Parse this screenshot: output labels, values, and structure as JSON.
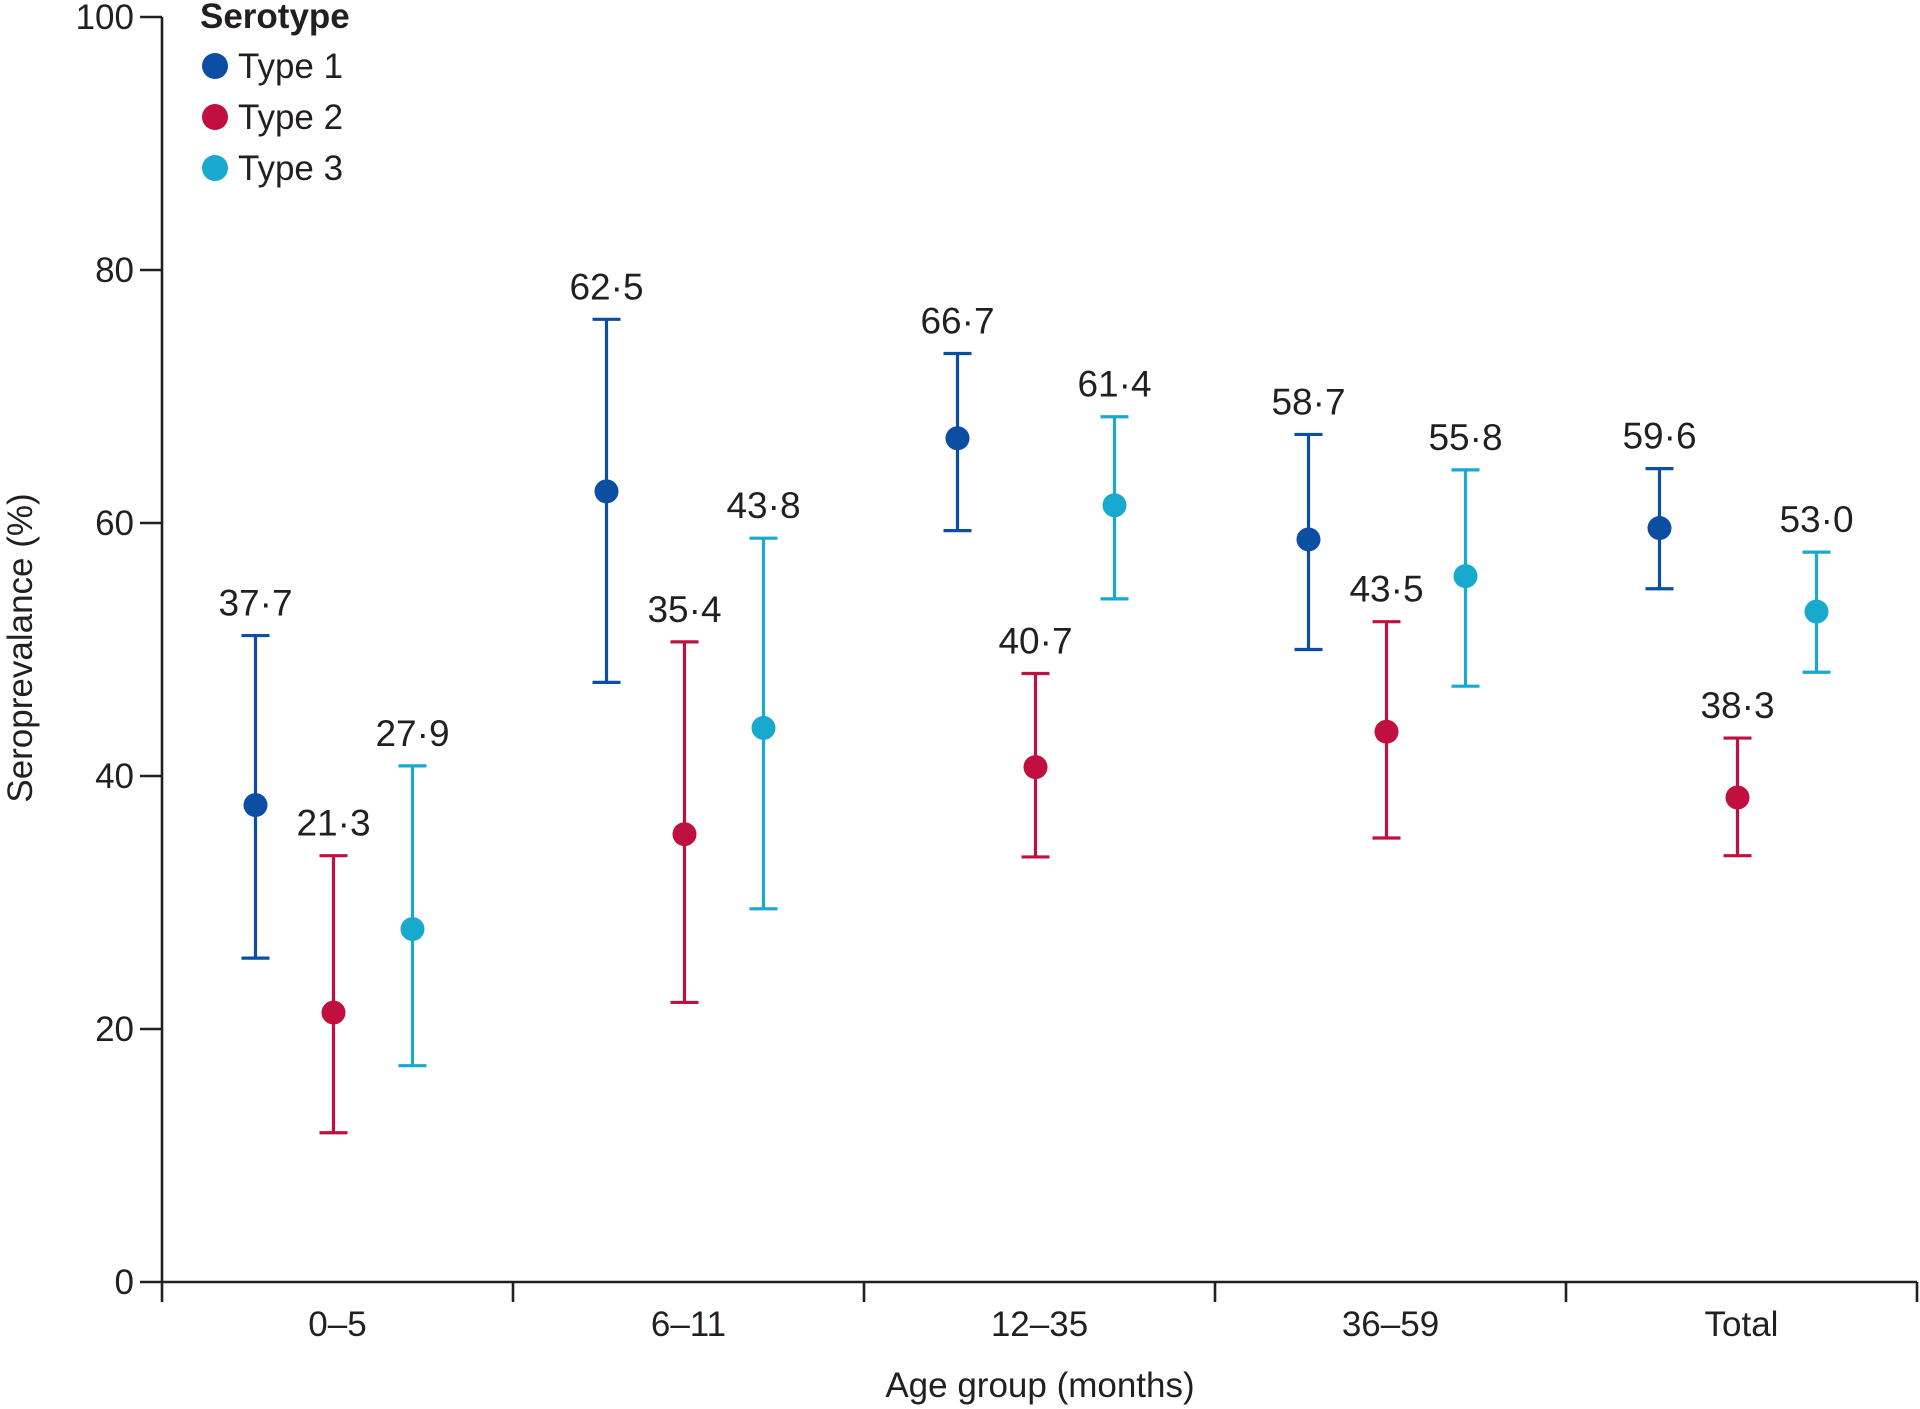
{
  "chart_data": {
    "type": "scatter",
    "subtype": "point-with-error-bars",
    "title": "",
    "xlabel": "Age group (months)",
    "ylabel": "Seroprevalance (%)",
    "ylim": [
      0,
      100
    ],
    "yticks": [
      0,
      20,
      40,
      60,
      80,
      100
    ],
    "categories": [
      "0–5",
      "6–11",
      "12–35",
      "36–59",
      "Total"
    ],
    "legend": {
      "title": "Serotype",
      "position": "top-left"
    },
    "series": [
      {
        "name": "Type 1",
        "color": "#0b4ea2",
        "values": [
          37.7,
          62.5,
          66.7,
          58.7,
          59.6
        ],
        "labels": [
          "37·7",
          "62·5",
          "66·7",
          "58·7",
          "59·6"
        ],
        "ci_lower": [
          25.6,
          47.4,
          59.4,
          50.0,
          54.8
        ],
        "ci_upper": [
          51.1,
          76.1,
          73.4,
          67.0,
          64.3
        ]
      },
      {
        "name": "Type 2",
        "color": "#c0103f",
        "values": [
          21.3,
          35.4,
          40.7,
          43.5,
          38.3
        ],
        "labels": [
          "21·3",
          "35·4",
          "40·7",
          "43·5",
          "38·3"
        ],
        "ci_lower": [
          11.8,
          22.1,
          33.6,
          35.1,
          33.7
        ],
        "ci_upper": [
          33.7,
          50.6,
          48.1,
          52.2,
          43.0
        ]
      },
      {
        "name": "Type 3",
        "color": "#19a9cf",
        "values": [
          27.9,
          43.8,
          61.4,
          55.8,
          53.0
        ],
        "labels": [
          "27·9",
          "43·8",
          "61·4",
          "55·8",
          "53·0"
        ],
        "ci_lower": [
          17.1,
          29.5,
          54.0,
          47.1,
          48.2
        ],
        "ci_upper": [
          40.8,
          58.8,
          68.4,
          64.2,
          57.7
        ]
      }
    ]
  }
}
